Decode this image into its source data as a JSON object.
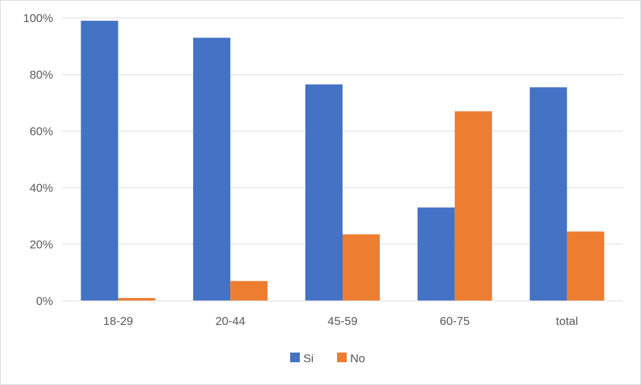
{
  "chart_data": {
    "type": "bar",
    "categories": [
      "18-29",
      "20-44",
      "45-59",
      "60-75",
      "total"
    ],
    "series": [
      {
        "name": "Si",
        "values": [
          99,
          93,
          76.5,
          33,
          75.5
        ],
        "color": "#4472c4"
      },
      {
        "name": "No",
        "values": [
          1,
          7,
          23.5,
          67,
          24.5
        ],
        "color": "#ed7d31"
      }
    ],
    "ylim": [
      0,
      100
    ],
    "yticks": [
      "0%",
      "20%",
      "40%",
      "60%",
      "80%",
      "100%"
    ],
    "grid": true,
    "legend": "bottom",
    "title": "",
    "xlabel": "",
    "ylabel": ""
  }
}
